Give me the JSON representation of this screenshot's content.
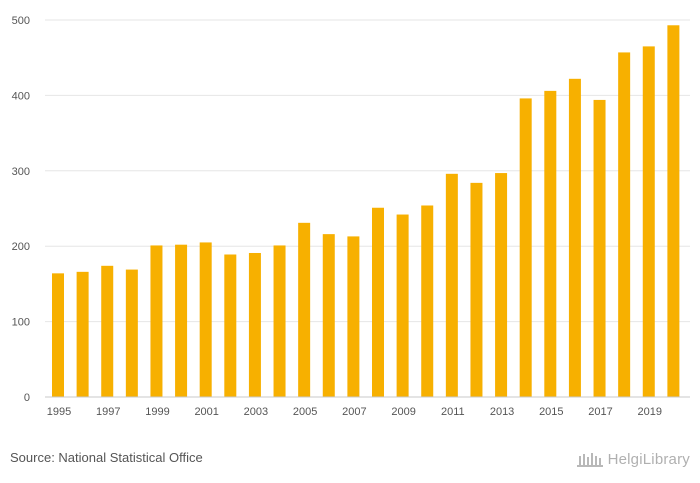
{
  "chart_data": {
    "type": "bar",
    "title": "",
    "xlabel": "",
    "ylabel": "",
    "categories": [
      "1995",
      "1996",
      "1997",
      "1998",
      "1999",
      "2000",
      "2001",
      "2002",
      "2003",
      "2004",
      "2005",
      "2006",
      "2007",
      "2008",
      "2009",
      "2010",
      "2011",
      "2012",
      "2013",
      "2014",
      "2015",
      "2016",
      "2017",
      "2018",
      "2019",
      "2020"
    ],
    "x_tick_labels": [
      "1995",
      "1997",
      "1999",
      "2001",
      "2003",
      "2005",
      "2007",
      "2009",
      "2011",
      "2013",
      "2015",
      "2017",
      "2019"
    ],
    "values": [
      164,
      166,
      174,
      169,
      201,
      202,
      205,
      189,
      191,
      201,
      231,
      216,
      213,
      251,
      242,
      254,
      296,
      284,
      297,
      396,
      406,
      422,
      394,
      457,
      465,
      493
    ],
    "ylim": [
      0,
      500
    ],
    "y_ticks": [
      0,
      100,
      200,
      300,
      400,
      500
    ],
    "bar_color": "#f7b000",
    "grid": true
  },
  "footer": {
    "source": "Source: National Statistical Office",
    "logo_text": "HelgiLibrary"
  }
}
